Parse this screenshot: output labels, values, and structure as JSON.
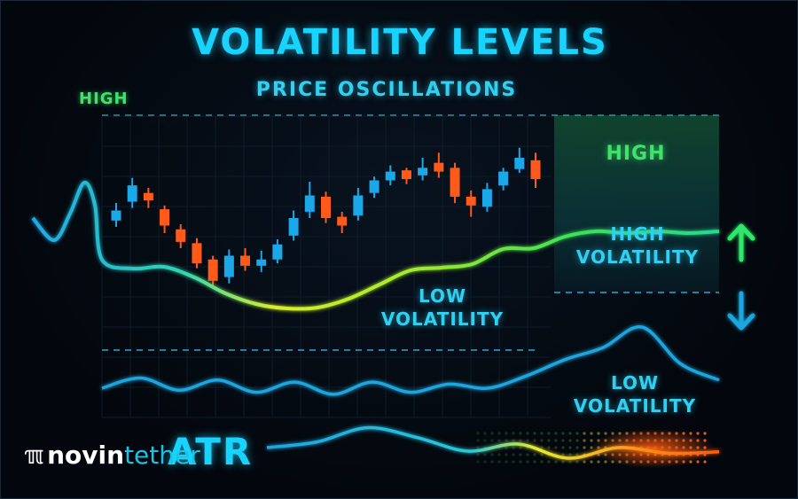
{
  "title": "VOLATILITY LEVELS",
  "subtitle": "PRICE OSCILLATIONS",
  "labels": {
    "high_axis": "HIGH",
    "high_zone": "HIGH",
    "high_volatility_line1": "HIGH",
    "high_volatility_line2": "VOLATILITY",
    "low_volatility_center_line1": "LOW",
    "low_volatility_center_line2": "VOLATILITY",
    "low_volatility_right_line1": "LOW",
    "low_volatility_right_line2": "VOLATILITY",
    "atr": "ATR"
  },
  "logo": {
    "mark": "ℼ",
    "part1": "novin",
    "part2": "tether"
  },
  "colors": {
    "title": "#19d3ff",
    "high_green": "#3fe36a",
    "cyan_text": "#2fd0f2",
    "candle_up": "#1ba8e8",
    "candle_down": "#ff5a1a",
    "arrow_up": "#2ee86a",
    "arrow_down": "#1aa6df",
    "zone_fill": "#0f3b2a"
  },
  "icons": {
    "arrow_up": "arrow-up-icon",
    "arrow_down": "arrow-down-icon"
  },
  "chart_data": {
    "type": "line",
    "title": "VOLATILITY LEVELS",
    "subtitle": "PRICE OSCILLATIONS",
    "candles": [
      {
        "open": 0.38,
        "close": 0.46,
        "high": 0.52,
        "low": 0.33,
        "dir": "up"
      },
      {
        "open": 0.53,
        "close": 0.66,
        "high": 0.72,
        "low": 0.48,
        "dir": "up"
      },
      {
        "open": 0.6,
        "close": 0.54,
        "high": 0.64,
        "low": 0.48,
        "dir": "down"
      },
      {
        "open": 0.47,
        "close": 0.34,
        "high": 0.5,
        "low": 0.28,
        "dir": "down"
      },
      {
        "open": 0.31,
        "close": 0.21,
        "high": 0.35,
        "low": 0.16,
        "dir": "down"
      },
      {
        "open": 0.2,
        "close": 0.04,
        "high": 0.24,
        "low": 0.0,
        "dir": "down"
      },
      {
        "open": 0.07,
        "close": -0.1,
        "high": 0.1,
        "low": -0.16,
        "dir": "down"
      },
      {
        "open": -0.07,
        "close": 0.1,
        "high": 0.15,
        "low": -0.12,
        "dir": "up"
      },
      {
        "open": 0.1,
        "close": 0.02,
        "high": 0.16,
        "low": -0.02,
        "dir": "down"
      },
      {
        "open": 0.02,
        "close": 0.07,
        "high": 0.14,
        "low": -0.03,
        "dir": "up"
      },
      {
        "open": 0.07,
        "close": 0.19,
        "high": 0.23,
        "low": 0.04,
        "dir": "up"
      },
      {
        "open": 0.26,
        "close": 0.4,
        "high": 0.46,
        "low": 0.22,
        "dir": "up"
      },
      {
        "open": 0.45,
        "close": 0.58,
        "high": 0.69,
        "low": 0.4,
        "dir": "up"
      },
      {
        "open": 0.57,
        "close": 0.4,
        "high": 0.61,
        "low": 0.36,
        "dir": "down"
      },
      {
        "open": 0.41,
        "close": 0.34,
        "high": 0.45,
        "low": 0.28,
        "dir": "down"
      },
      {
        "open": 0.42,
        "close": 0.58,
        "high": 0.64,
        "low": 0.38,
        "dir": "up"
      },
      {
        "open": 0.6,
        "close": 0.7,
        "high": 0.73,
        "low": 0.56,
        "dir": "up"
      },
      {
        "open": 0.7,
        "close": 0.77,
        "high": 0.82,
        "low": 0.66,
        "dir": "up"
      },
      {
        "open": 0.78,
        "close": 0.71,
        "high": 0.8,
        "low": 0.67,
        "dir": "down"
      },
      {
        "open": 0.74,
        "close": 0.8,
        "high": 0.88,
        "low": 0.7,
        "dir": "up"
      },
      {
        "open": 0.84,
        "close": 0.77,
        "high": 0.92,
        "low": 0.72,
        "dir": "down"
      },
      {
        "open": 0.8,
        "close": 0.57,
        "high": 0.84,
        "low": 0.52,
        "dir": "down"
      },
      {
        "open": 0.57,
        "close": 0.5,
        "high": 0.62,
        "low": 0.41,
        "dir": "down"
      },
      {
        "open": 0.49,
        "close": 0.63,
        "high": 0.68,
        "low": 0.45,
        "dir": "up"
      },
      {
        "open": 0.66,
        "close": 0.77,
        "high": 0.8,
        "low": 0.62,
        "dir": "up"
      },
      {
        "open": 0.79,
        "close": 0.88,
        "high": 0.96,
        "low": 0.76,
        "dir": "up"
      },
      {
        "open": 0.86,
        "close": 0.71,
        "high": 0.92,
        "low": 0.64,
        "dir": "down"
      }
    ],
    "price_curve": [
      0.5,
      0.4,
      0.42,
      0.3,
      0.12,
      0.0,
      -0.05,
      -0.04,
      0.06,
      0.22,
      0.38,
      0.41,
      0.45,
      0.62,
      0.63,
      0.76,
      0.82,
      0.8,
      0.82,
      0.8,
      0.82
    ],
    "low_wave": [
      0.1,
      0.15,
      0.09,
      0.14,
      0.08,
      0.13,
      0.07,
      0.13,
      0.08,
      0.12,
      0.1,
      0.16,
      0.24,
      0.3,
      0.4,
      0.22,
      0.14
    ],
    "atr_wave": [
      0.1,
      0.18,
      0.38,
      0.24,
      0.05,
      0.15,
      -0.05,
      0.1,
      0.02,
      0.04
    ]
  }
}
